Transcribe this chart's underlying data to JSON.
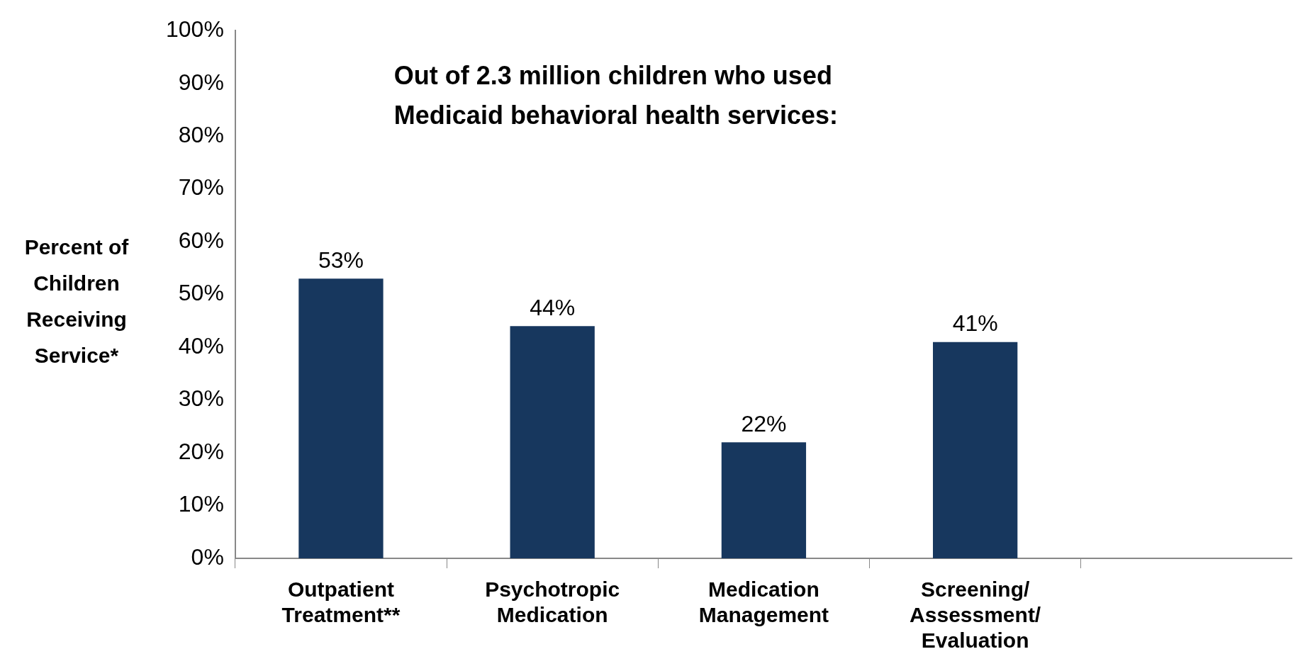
{
  "chart_data": {
    "type": "bar",
    "title": "Out of 2.3 million children who used Medicaid behavioral health services:",
    "ylabel": "Percent of Children Receiving Service*",
    "categories": [
      "Outpatient Treatment**",
      "Psychotropic Medication",
      "Medication Management",
      "Screening/ Assessment/ Evaluation",
      null
    ],
    "values": [
      53,
      44,
      22,
      41,
      null
    ],
    "value_labels": [
      "53%",
      "44%",
      "22%",
      "41%",
      null
    ],
    "color": "#17375e",
    "ylim": [
      0,
      100
    ],
    "yticks": [
      {
        "value": 0,
        "label": "0%"
      },
      {
        "value": 10,
        "label": "10%"
      },
      {
        "value": 20,
        "label": "20%"
      },
      {
        "value": 30,
        "label": "30%"
      },
      {
        "value": 40,
        "label": "40%"
      },
      {
        "value": 50,
        "label": "50%"
      },
      {
        "value": 60,
        "label": "60%"
      },
      {
        "value": 70,
        "label": "70%"
      },
      {
        "value": 80,
        "label": "80%"
      },
      {
        "value": 90,
        "label": "90%"
      },
      {
        "value": 100,
        "label": "100%"
      }
    ],
    "grid": false,
    "legend": false
  }
}
